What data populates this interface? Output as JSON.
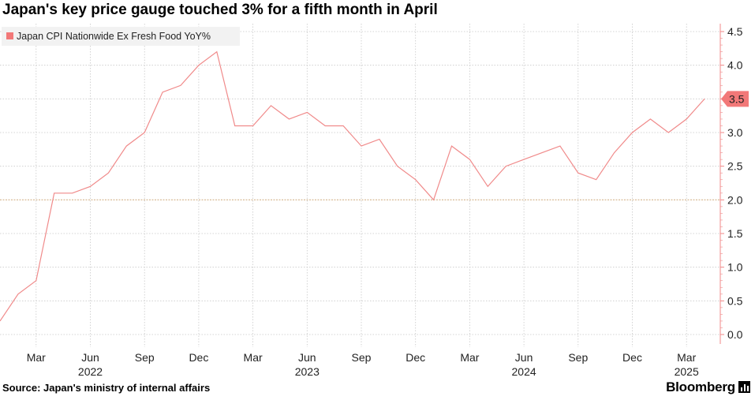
{
  "title": "Japan's key price gauge touched 3% for a fifth month in April",
  "source": "Source: Japan's ministry of internal affairs",
  "brand": "Bloomberg",
  "colors": {
    "line": "#f08a8a",
    "legend_swatch": "#f27878",
    "reference": "#d8b890",
    "grid": "#c8c8c8"
  },
  "chart_data": {
    "type": "line",
    "series": [
      {
        "name": "Japan CPI Nationwide Ex Fresh Food YoY%",
        "x": [
          "2022-01",
          "2022-02",
          "2022-03",
          "2022-04",
          "2022-05",
          "2022-06",
          "2022-07",
          "2022-08",
          "2022-09",
          "2022-10",
          "2022-11",
          "2022-12",
          "2023-01",
          "2023-02",
          "2023-03",
          "2023-04",
          "2023-05",
          "2023-06",
          "2023-07",
          "2023-08",
          "2023-09",
          "2023-10",
          "2023-11",
          "2023-12",
          "2024-01",
          "2024-02",
          "2024-03",
          "2024-04",
          "2024-05",
          "2024-06",
          "2024-07",
          "2024-08",
          "2024-09",
          "2024-10",
          "2024-11",
          "2024-12",
          "2025-01",
          "2025-02",
          "2025-03",
          "2025-04"
        ],
        "values": [
          0.2,
          0.6,
          0.8,
          2.1,
          2.1,
          2.2,
          2.4,
          2.8,
          3.0,
          3.6,
          3.7,
          4.0,
          4.2,
          3.1,
          3.1,
          3.4,
          3.2,
          3.3,
          3.1,
          3.1,
          2.8,
          2.9,
          2.5,
          2.3,
          2.0,
          2.8,
          2.6,
          2.2,
          2.5,
          2.6,
          2.7,
          2.8,
          2.4,
          2.3,
          2.7,
          3.0,
          3.2,
          3.0,
          3.2,
          3.5
        ]
      }
    ],
    "last_value_label": "3.5",
    "reference_line": 2.0,
    "ylim": [
      0,
      4.5
    ],
    "y_ticks": [
      "0.0",
      "0.5",
      "1.0",
      "1.5",
      "2.0",
      "2.5",
      "3.0",
      "3.5",
      "4.0",
      "4.5"
    ],
    "x_ticks": [
      {
        "month": "2022-03",
        "label": "Mar"
      },
      {
        "month": "2022-06",
        "label": "Jun"
      },
      {
        "month": "2022-09",
        "label": "Sep"
      },
      {
        "month": "2022-12",
        "label": "Dec"
      },
      {
        "month": "2023-03",
        "label": "Mar"
      },
      {
        "month": "2023-06",
        "label": "Jun"
      },
      {
        "month": "2023-09",
        "label": "Sep"
      },
      {
        "month": "2023-12",
        "label": "Dec"
      },
      {
        "month": "2024-03",
        "label": "Mar"
      },
      {
        "month": "2024-06",
        "label": "Jun"
      },
      {
        "month": "2024-09",
        "label": "Sep"
      },
      {
        "month": "2024-12",
        "label": "Dec"
      },
      {
        "month": "2025-03",
        "label": "Mar"
      }
    ],
    "year_labels": [
      {
        "month": "2022-06",
        "label": "2022"
      },
      {
        "month": "2023-06",
        "label": "2023"
      },
      {
        "month": "2024-06",
        "label": "2024"
      },
      {
        "month": "2025-03",
        "label": "2025"
      }
    ],
    "legend_position": "top-left",
    "grid": true,
    "y_axis_side": "right"
  }
}
